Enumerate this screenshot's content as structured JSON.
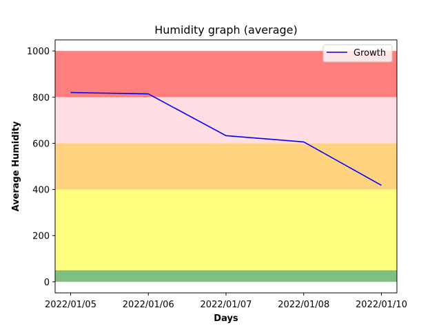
{
  "chart_data": {
    "type": "line",
    "title": "Humidity graph (average)",
    "xlabel": "Days",
    "ylabel": "Average Humidity",
    "categories": [
      "2022/01/05",
      "2022/01/06",
      "2022/01/07",
      "2022/01/08",
      "2022/01/10"
    ],
    "series": [
      {
        "name": "Growth",
        "values": [
          820,
          814,
          633,
          606,
          418
        ],
        "color": "#0000ff"
      }
    ],
    "ylim": [
      -48,
      1048
    ],
    "yticks": [
      0,
      200,
      400,
      600,
      800,
      1000
    ],
    "bands": [
      {
        "from": 0,
        "to": 50,
        "color": "#7fbf7f"
      },
      {
        "from": 50,
        "to": 400,
        "color": "#ffff7f"
      },
      {
        "from": 400,
        "to": 600,
        "color": "#ffd27f"
      },
      {
        "from": 600,
        "to": 800,
        "color": "#ffdde2"
      },
      {
        "from": 800,
        "to": 1000,
        "color": "#ff7f7f"
      }
    ],
    "legend": {
      "placement": "top-right",
      "entries": [
        "Growth"
      ]
    },
    "grid": false
  }
}
